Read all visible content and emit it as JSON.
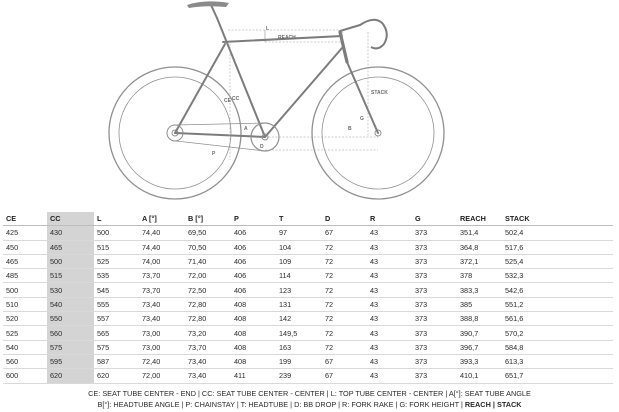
{
  "diagram": {
    "labels": {
      "reach": "REACH",
      "stack": "STACK",
      "l": "L",
      "b": "B",
      "a": "A",
      "p": "P",
      "g": "G",
      "d": "D",
      "cc": "CC",
      "ce": "CE"
    }
  },
  "table": {
    "headers": [
      "CE",
      "CC",
      "L",
      "A [°]",
      "B [°]",
      "P",
      "T",
      "D",
      "R",
      "G",
      "REACH",
      "STACK"
    ],
    "rows": [
      [
        "425",
        "430",
        "500",
        "74,40",
        "69,50",
        "406",
        "97",
        "67",
        "43",
        "373",
        "351,4",
        "502,4"
      ],
      [
        "450",
        "465",
        "515",
        "74,40",
        "70,50",
        "406",
        "104",
        "72",
        "43",
        "373",
        "364,8",
        "517,6"
      ],
      [
        "465",
        "500",
        "525",
        "74,00",
        "71,40",
        "406",
        "109",
        "72",
        "43",
        "373",
        "372,1",
        "525,4"
      ],
      [
        "485",
        "515",
        "535",
        "73,70",
        "72,00",
        "406",
        "114",
        "72",
        "43",
        "373",
        "378",
        "532,3"
      ],
      [
        "500",
        "530",
        "545",
        "73,70",
        "72,50",
        "406",
        "123",
        "72",
        "43",
        "373",
        "383,3",
        "542,6"
      ],
      [
        "510",
        "540",
        "555",
        "73,40",
        "72,80",
        "408",
        "131",
        "72",
        "43",
        "373",
        "385",
        "551,2"
      ],
      [
        "520",
        "550",
        "557",
        "73,40",
        "72,80",
        "408",
        "142",
        "72",
        "43",
        "373",
        "388,8",
        "561,6"
      ],
      [
        "525",
        "560",
        "565",
        "73,00",
        "73,20",
        "408",
        "149,5",
        "72",
        "43",
        "373",
        "390,7",
        "570,2"
      ],
      [
        "540",
        "575",
        "575",
        "73,00",
        "73,70",
        "408",
        "163",
        "72",
        "43",
        "373",
        "396,7",
        "584,8"
      ],
      [
        "560",
        "595",
        "587",
        "72,40",
        "73,40",
        "408",
        "199",
        "67",
        "43",
        "373",
        "393,3",
        "613,3"
      ],
      [
        "600",
        "620",
        "620",
        "72,00",
        "73,40",
        "411",
        "239",
        "67",
        "43",
        "373",
        "410,1",
        "651,7"
      ]
    ]
  },
  "legend": {
    "line1": "CE: SEAT TUBE CENTER - END | CC: SEAT TUBE CENTER - CENTER | L: TOP TUBE CENTER - CENTER | A[°]: SEAT TUBE ANGLE",
    "line2_prefix": "B[°]: HEADTUBE ANGLE | P: CHAINSTAY | T: HEADTUBE | D: BB DROP | R: FORK RAKE | G: FORK HEIGHT | ",
    "line2_bold": "REACH | STACK"
  }
}
